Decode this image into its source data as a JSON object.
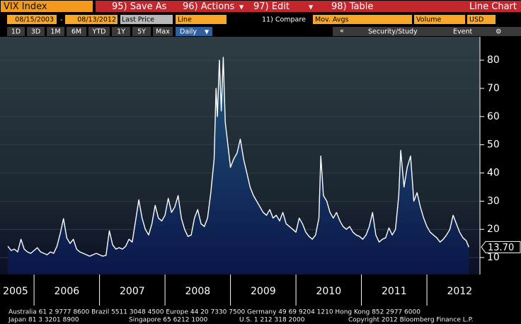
{
  "header": {
    "security": "VIX Index",
    "buttons": [
      "95) Save As",
      "96) Actions",
      "97) Edit",
      "98) Table"
    ],
    "chart_kind": "Line Chart"
  },
  "controls": {
    "start_date": "08/15/2003",
    "separator": "-",
    "end_date": "08/13/2012",
    "field": "Last Price",
    "style": "Line",
    "compare": "11) Compare",
    "averages": "Mov. Avgs",
    "lower": "Volume",
    "currency": "USD"
  },
  "periods": [
    "1D",
    "3D",
    "1M",
    "6M",
    "YTD",
    "1Y",
    "5Y",
    "Max"
  ],
  "frequency": "Daily",
  "collapse": "«",
  "study": "Security/Study",
  "event": "Event",
  "footer": [
    "Australia 61 2 9777 8600 Brazil 5511 3048 4500 Europe 44 20 7330 7500 Germany 49 69 9204 1210 Hong Kong 852 2977 6000",
    "Japan 81 3 3201 8900",
    "Singapore 65 6212 1000",
    "U.S. 1 212 318 2000",
    "Copyright 2012 Bloomberg Finance L.P."
  ],
  "chart_data": {
    "type": "line",
    "color": "#ffffff",
    "fill": "#1d4a72",
    "grid": true,
    "x": [
      2005.6,
      2005.65,
      2005.7,
      2005.75,
      2005.8,
      2005.85,
      2005.9,
      2005.95,
      2006.0,
      2006.05,
      2006.1,
      2006.15,
      2006.2,
      2006.25,
      2006.3,
      2006.35,
      2006.4,
      2006.45,
      2006.5,
      2006.55,
      2006.6,
      2006.65,
      2006.7,
      2006.75,
      2006.8,
      2006.85,
      2006.9,
      2006.95,
      2007.0,
      2007.05,
      2007.1,
      2007.15,
      2007.2,
      2007.25,
      2007.3,
      2007.35,
      2007.4,
      2007.45,
      2007.5,
      2007.55,
      2007.6,
      2007.65,
      2007.7,
      2007.75,
      2007.8,
      2007.85,
      2007.9,
      2007.95,
      2008.0,
      2008.05,
      2008.1,
      2008.15,
      2008.2,
      2008.25,
      2008.3,
      2008.35,
      2008.4,
      2008.45,
      2008.5,
      2008.55,
      2008.6,
      2008.65,
      2008.7,
      2008.75,
      2008.78,
      2008.8,
      2008.83,
      2008.86,
      2008.89,
      2008.92,
      2008.95,
      2009.0,
      2009.05,
      2009.1,
      2009.15,
      2009.2,
      2009.25,
      2009.3,
      2009.35,
      2009.4,
      2009.45,
      2009.5,
      2009.55,
      2009.6,
      2009.65,
      2009.7,
      2009.75,
      2009.8,
      2009.85,
      2009.9,
      2009.95,
      2010.0,
      2010.05,
      2010.1,
      2010.15,
      2010.2,
      2010.25,
      2010.3,
      2010.35,
      2010.38,
      2010.42,
      2010.47,
      2010.52,
      2010.57,
      2010.62,
      2010.67,
      2010.72,
      2010.77,
      2010.82,
      2010.87,
      2010.92,
      2010.97,
      2011.02,
      2011.07,
      2011.12,
      2011.17,
      2011.22,
      2011.27,
      2011.32,
      2011.37,
      2011.42,
      2011.47,
      2011.52,
      2011.57,
      2011.6,
      2011.65,
      2011.7,
      2011.75,
      2011.8,
      2011.85,
      2011.9,
      2011.95,
      2012.0,
      2012.05,
      2012.1,
      2012.15,
      2012.2,
      2012.25,
      2012.3,
      2012.35,
      2012.4,
      2012.45,
      2012.5,
      2012.55,
      2012.6,
      2012.64
    ],
    "values": [
      14.0,
      12.5,
      13.0,
      12.0,
      16.5,
      13.0,
      12.0,
      11.5,
      12.5,
      13.5,
      12.0,
      11.5,
      11.0,
      12.0,
      11.5,
      14.0,
      18.5,
      23.8,
      17.0,
      15.0,
      16.5,
      13.0,
      12.0,
      11.5,
      11.0,
      10.5,
      11.0,
      11.5,
      11.0,
      10.5,
      10.8,
      19.5,
      14.5,
      13.0,
      13.5,
      13.0,
      14.0,
      16.5,
      15.5,
      23.0,
      30.5,
      24.0,
      20.0,
      18.0,
      22.0,
      28.5,
      24.0,
      23.0,
      25.0,
      31.0,
      26.0,
      28.0,
      32.0,
      24.0,
      20.0,
      17.5,
      18.0,
      24.0,
      27.0,
      22.0,
      21.0,
      24.0,
      33.0,
      45.0,
      70.0,
      60.0,
      80.0,
      62.0,
      81.0,
      58.0,
      52.0,
      42.0,
      45.0,
      47.0,
      52.0,
      45.0,
      40.0,
      35.0,
      32.0,
      30.0,
      28.0,
      26.0,
      25.0,
      27.0,
      24.0,
      25.0,
      23.0,
      26.0,
      22.0,
      21.0,
      20.0,
      19.0,
      24.0,
      22.0,
      19.0,
      17.5,
      16.5,
      18.0,
      24.0,
      46.0,
      32.0,
      30.0,
      26.0,
      24.0,
      26.0,
      23.0,
      21.0,
      20.0,
      21.0,
      19.0,
      18.0,
      17.5,
      16.5,
      18.0,
      21.0,
      26.0,
      18.0,
      15.5,
      16.5,
      17.0,
      20.5,
      18.0,
      20.0,
      32.0,
      48.0,
      35.0,
      42.0,
      46.0,
      30.0,
      33.0,
      28.0,
      24.0,
      21.0,
      19.0,
      18.0,
      17.0,
      15.5,
      16.5,
      18.0,
      20.0,
      25.0,
      22.0,
      19.0,
      17.0,
      16.0,
      13.7
    ],
    "last_price": {
      "value": 13.7,
      "label": "13.70"
    },
    "xlim": [
      2005.48,
      2012.81
    ],
    "xticks": [
      {
        "value": 2005.5,
        "label": "2005"
      },
      {
        "value": 2006.5,
        "label": "2006"
      },
      {
        "value": 2007.5,
        "label": "2007"
      },
      {
        "value": 2008.5,
        "label": "2008"
      },
      {
        "value": 2009.5,
        "label": "2009"
      },
      {
        "value": 2010.5,
        "label": "2010"
      },
      {
        "value": 2011.5,
        "label": "2011"
      },
      {
        "value": 2012.5,
        "label": "2012"
      }
    ],
    "ylim": [
      4,
      88.3
    ],
    "yticks": [
      10,
      20,
      30,
      40,
      50,
      60,
      70,
      80
    ]
  }
}
